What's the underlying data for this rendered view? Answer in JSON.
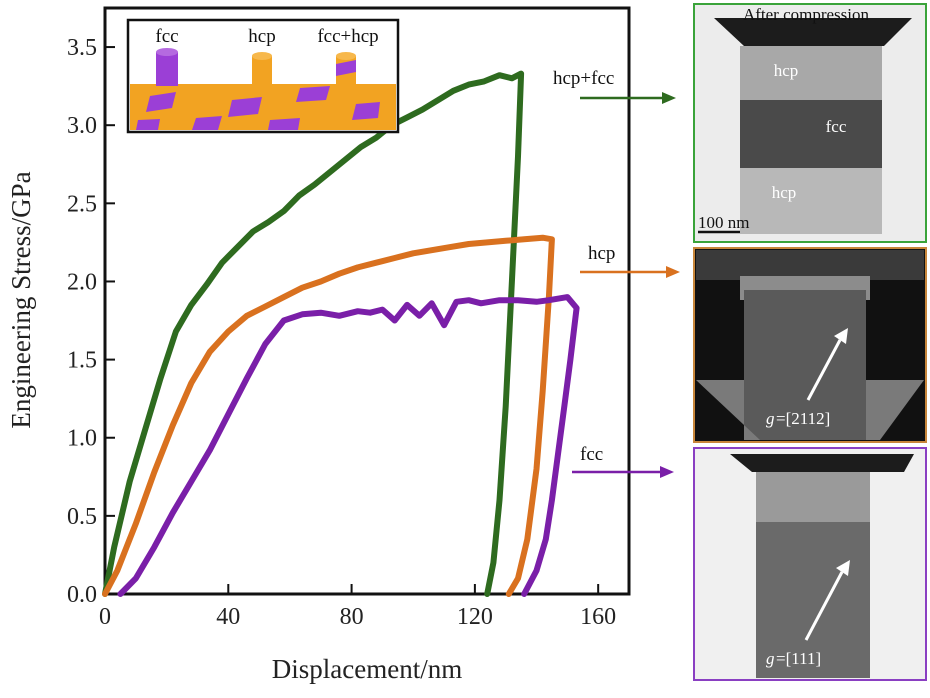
{
  "chart_data": {
    "type": "line",
    "xlabel": "Displacement/nm",
    "ylabel": "Engineering Stress/GPa",
    "xlim": [
      0,
      170
    ],
    "ylim": [
      0,
      3.75
    ],
    "xticks": [
      "0",
      "40",
      "80",
      "120",
      "160"
    ],
    "yticks": [
      "0.0",
      "0.5",
      "1.0",
      "1.5",
      "2.0",
      "2.5",
      "3.0",
      "3.5"
    ],
    "series": [
      {
        "name": "hcp+fcc",
        "color": "#2e6b1f",
        "points": [
          [
            0,
            0
          ],
          [
            3,
            0.3
          ],
          [
            8,
            0.72
          ],
          [
            13,
            1.05
          ],
          [
            18,
            1.38
          ],
          [
            23,
            1.68
          ],
          [
            28,
            1.85
          ],
          [
            33,
            1.98
          ],
          [
            38,
            2.12
          ],
          [
            43,
            2.22
          ],
          [
            48,
            2.32
          ],
          [
            53,
            2.38
          ],
          [
            58,
            2.45
          ],
          [
            63,
            2.55
          ],
          [
            68,
            2.62
          ],
          [
            73,
            2.7
          ],
          [
            78,
            2.78
          ],
          [
            83,
            2.86
          ],
          [
            88,
            2.92
          ],
          [
            93,
            3.0
          ],
          [
            98,
            3.05
          ],
          [
            103,
            3.1
          ],
          [
            108,
            3.16
          ],
          [
            113,
            3.22
          ],
          [
            118,
            3.26
          ],
          [
            123,
            3.28
          ],
          [
            128,
            3.32
          ],
          [
            132,
            3.3
          ],
          [
            135,
            3.33
          ],
          [
            134,
            2.8
          ],
          [
            132,
            2.0
          ],
          [
            130,
            1.2
          ],
          [
            128,
            0.6
          ],
          [
            126,
            0.2
          ],
          [
            124,
            0
          ]
        ]
      },
      {
        "name": "hcp",
        "color": "#d9711f",
        "points": [
          [
            0,
            0
          ],
          [
            4,
            0.15
          ],
          [
            10,
            0.45
          ],
          [
            16,
            0.78
          ],
          [
            22,
            1.08
          ],
          [
            28,
            1.35
          ],
          [
            34,
            1.55
          ],
          [
            40,
            1.68
          ],
          [
            46,
            1.78
          ],
          [
            52,
            1.84
          ],
          [
            58,
            1.9
          ],
          [
            64,
            1.96
          ],
          [
            70,
            2.0
          ],
          [
            76,
            2.05
          ],
          [
            82,
            2.09
          ],
          [
            88,
            2.12
          ],
          [
            94,
            2.15
          ],
          [
            100,
            2.18
          ],
          [
            106,
            2.2
          ],
          [
            112,
            2.22
          ],
          [
            118,
            2.24
          ],
          [
            124,
            2.25
          ],
          [
            130,
            2.26
          ],
          [
            136,
            2.27
          ],
          [
            142,
            2.28
          ],
          [
            145,
            2.27
          ],
          [
            144,
            1.9
          ],
          [
            142,
            1.3
          ],
          [
            140,
            0.8
          ],
          [
            137,
            0.35
          ],
          [
            134,
            0.1
          ],
          [
            131,
            0
          ]
        ]
      },
      {
        "name": "fcc",
        "color": "#7a1fa8",
        "points": [
          [
            5,
            0
          ],
          [
            10,
            0.1
          ],
          [
            16,
            0.3
          ],
          [
            22,
            0.52
          ],
          [
            28,
            0.72
          ],
          [
            34,
            0.92
          ],
          [
            40,
            1.15
          ],
          [
            46,
            1.38
          ],
          [
            52,
            1.6
          ],
          [
            58,
            1.75
          ],
          [
            64,
            1.79
          ],
          [
            70,
            1.8
          ],
          [
            76,
            1.78
          ],
          [
            82,
            1.81
          ],
          [
            86,
            1.8
          ],
          [
            90,
            1.82
          ],
          [
            94,
            1.75
          ],
          [
            98,
            1.85
          ],
          [
            102,
            1.78
          ],
          [
            106,
            1.86
          ],
          [
            110,
            1.72
          ],
          [
            114,
            1.87
          ],
          [
            118,
            1.88
          ],
          [
            122,
            1.86
          ],
          [
            128,
            1.88
          ],
          [
            134,
            1.88
          ],
          [
            140,
            1.87
          ],
          [
            144,
            1.88
          ],
          [
            150,
            1.9
          ],
          [
            153,
            1.83
          ],
          [
            151,
            1.5
          ],
          [
            149,
            1.2
          ],
          [
            147,
            0.9
          ],
          [
            145,
            0.6
          ],
          [
            143,
            0.35
          ],
          [
            140,
            0.15
          ],
          [
            136,
            0
          ]
        ]
      }
    ]
  },
  "inset": {
    "labels": [
      "fcc",
      "hcp",
      "fcc+hcp"
    ],
    "colors": {
      "orange": "#f2a322",
      "purple": "#9b3fd6"
    }
  },
  "annotations": {
    "hcp_fcc": "hcp+fcc",
    "hcp": "hcp",
    "fcc": "fcc"
  },
  "tem": {
    "top": {
      "title": "After compression",
      "labels": [
        "hcp",
        "fcc",
        "hcp"
      ],
      "scale": "100 nm",
      "border": "#3aa33a"
    },
    "middle": {
      "gvec_prefix": "g",
      "gvec": "=[2112]",
      "border": "#c8863a"
    },
    "bottom": {
      "gvec_prefix": "g",
      "gvec": "=[111]",
      "border": "#8a3fc2"
    }
  }
}
